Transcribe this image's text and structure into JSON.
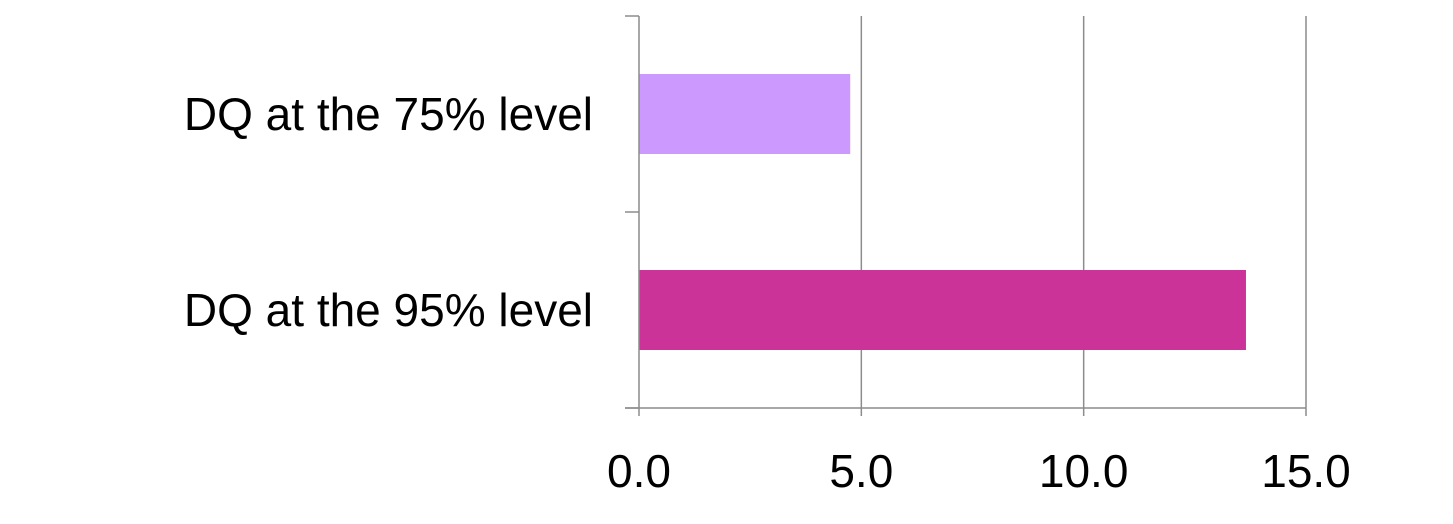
{
  "chart_data": {
    "type": "bar",
    "orientation": "horizontal",
    "title": "",
    "xlabel": "",
    "ylabel": "",
    "categories": [
      "DQ at the 75% level",
      "DQ at the 95% level"
    ],
    "values": [
      4.75,
      13.65
    ],
    "bar_colors": [
      "#cc99ff",
      "#cc3399"
    ],
    "xlim": [
      0,
      15
    ],
    "x_ticks": [
      0,
      5,
      10,
      15
    ],
    "x_tick_labels": [
      "0.0",
      "5.0",
      "10.0",
      "15.0"
    ],
    "grid": "vertical",
    "legend": "none"
  }
}
